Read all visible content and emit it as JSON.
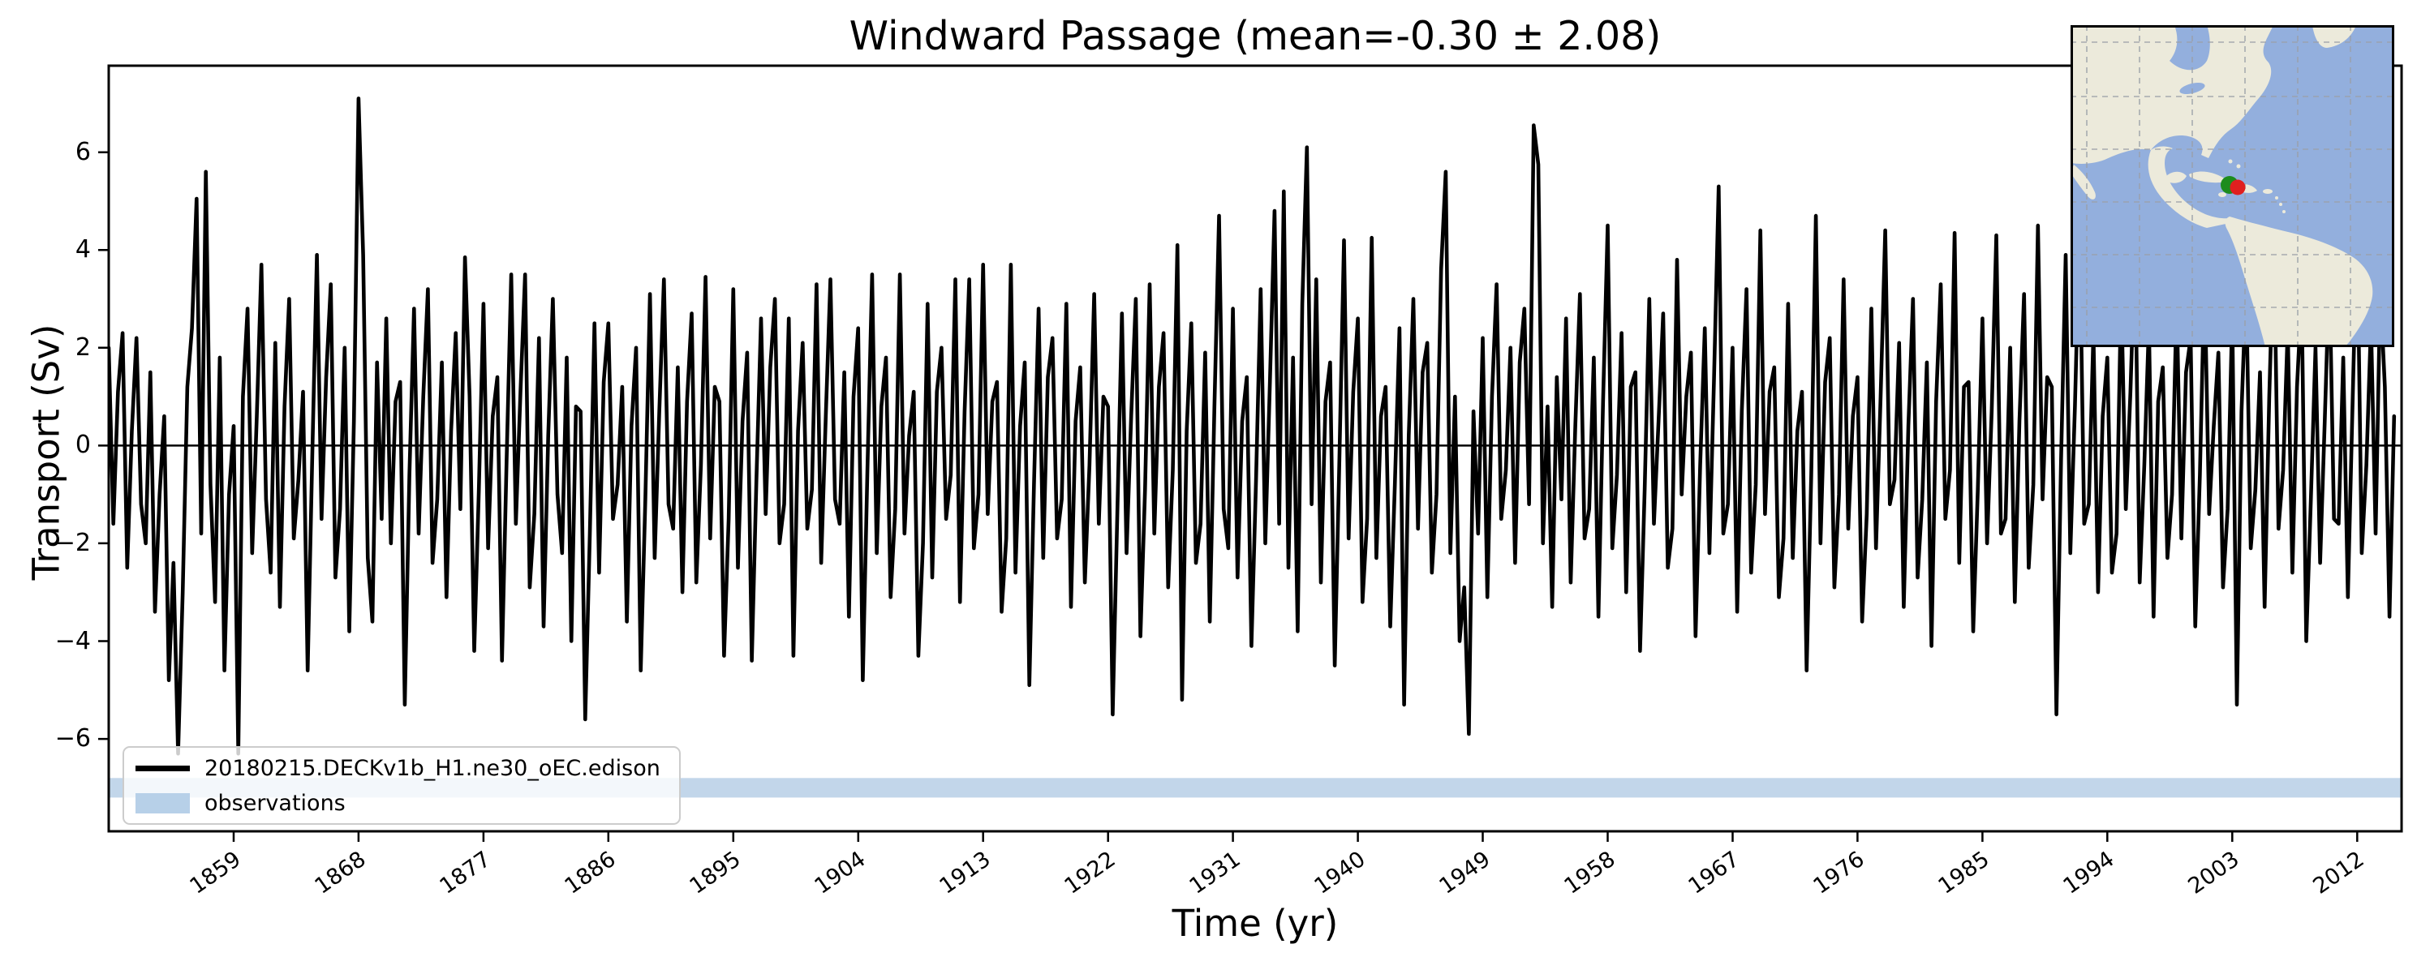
{
  "title": "Windward Passage (mean=-0.30 ± 2.08)",
  "stats": {
    "mean": "-0.30",
    "std": "2.08"
  },
  "axes": {
    "xlabel": "Time (yr)",
    "ylabel": "Transport (Sv)",
    "xlim": [
      1850.0,
      2015.2
    ],
    "ylim": [
      -7.89,
      7.77
    ],
    "x_ticks": [
      1859,
      1868,
      1877,
      1886,
      1895,
      1904,
      1913,
      1922,
      1931,
      1940,
      1949,
      1958,
      1967,
      1976,
      1985,
      1994,
      2003,
      2012
    ],
    "y_ticks": [
      {
        "v": 6,
        "label": "6"
      },
      {
        "v": 4,
        "label": "4"
      },
      {
        "v": 2,
        "label": "2"
      },
      {
        "v": 0,
        "label": "0"
      },
      {
        "v": -2,
        "label": "−2"
      },
      {
        "v": -4,
        "label": "−4"
      },
      {
        "v": -6,
        "label": "−6"
      }
    ],
    "grid": "off"
  },
  "legend": {
    "position": "lower left",
    "entries": [
      {
        "label": "20180215.DECKv1b_H1.ne30_oEC.edison",
        "type": "line",
        "color": "#000000"
      },
      {
        "label": "observations",
        "type": "patch",
        "color": "#b7d0e8"
      }
    ]
  },
  "chart_data": {
    "type": "line",
    "title": "Windward Passage (mean=-0.30 ± 2.08)",
    "xlabel": "Time (yr)",
    "ylabel": "Transport (Sv)",
    "xlim": [
      1850.0,
      2015.2
    ],
    "ylim": [
      -7.89,
      7.77
    ],
    "zero_line": 0,
    "observations_band": {
      "ymin": -7.2,
      "ymax": -6.8,
      "color": "#c2d6ea"
    },
    "series": [
      {
        "name": "20180215.DECKv1b_H1.ne30_oEC.edison",
        "color": "#000000",
        "line_width": 4.6,
        "x_start": 1850.0,
        "x_step": 0.33333,
        "values": [
          2.0,
          -1.6,
          1.1,
          2.3,
          -2.5,
          0.3,
          2.2,
          -1.2,
          -2.0,
          1.5,
          -3.4,
          -1.0,
          0.6,
          -4.8,
          -2.4,
          -6.3,
          -3.0,
          1.2,
          2.4,
          5.05,
          -1.8,
          5.6,
          -0.8,
          -3.2,
          1.8,
          -4.6,
          -1.0,
          0.4,
          -6.3,
          1.0,
          2.8,
          -2.2,
          0.6,
          3.7,
          -1.1,
          -2.6,
          2.1,
          -3.3,
          0.8,
          3.0,
          -1.9,
          -0.7,
          1.1,
          -4.6,
          -0.2,
          3.9,
          -1.5,
          1.4,
          3.3,
          -2.7,
          -1.3,
          2.0,
          -3.8,
          0.5,
          7.1,
          3.9,
          -2.3,
          -3.6,
          1.7,
          -1.5,
          2.6,
          -2.0,
          0.9,
          1.3,
          -5.3,
          -0.6,
          2.8,
          -1.8,
          1.0,
          3.2,
          -2.4,
          -1.1,
          1.7,
          -3.1,
          0.3,
          2.3,
          -1.3,
          3.85,
          1.0,
          -4.2,
          -0.9,
          2.9,
          -2.1,
          0.6,
          1.4,
          -4.4,
          -0.3,
          3.5,
          -1.6,
          1.1,
          3.5,
          -2.9,
          -1.4,
          2.2,
          -3.7,
          0.2,
          3.0,
          -1.0,
          -2.2,
          1.8,
          -4.0,
          0.8,
          0.7,
          -5.6,
          -1.8,
          2.5,
          -2.6,
          1.3,
          2.5,
          -1.5,
          -0.8,
          1.2,
          -3.6,
          0.4,
          2.0,
          -4.6,
          -1.1,
          3.1,
          -2.3,
          0.7,
          3.4,
          -1.2,
          -1.7,
          1.6,
          -3.0,
          0.9,
          2.7,
          -2.8,
          -0.4,
          3.45,
          -1.9,
          1.2,
          0.9,
          -4.3,
          -1.5,
          3.2,
          -2.5,
          0.5,
          1.9,
          -4.4,
          -0.7,
          2.6,
          -1.4,
          1.6,
          3.0,
          -2.0,
          -1.2,
          2.6,
          -4.3,
          0.3,
          2.1,
          -1.7,
          -0.9,
          3.3,
          -2.4,
          0.6,
          3.4,
          -1.1,
          -1.6,
          1.5,
          -3.5,
          1.0,
          2.4,
          -4.8,
          -0.5,
          3.5,
          -2.2,
          0.8,
          1.8,
          -3.1,
          -1.3,
          3.5,
          -1.8,
          0.2,
          1.1,
          -4.3,
          -2.0,
          2.9,
          -2.7,
          1.1,
          2.0,
          -1.5,
          -0.6,
          3.4,
          -3.2,
          0.7,
          3.4,
          -2.1,
          -1.0,
          3.7,
          -1.4,
          0.9,
          1.3,
          -3.4,
          -1.9,
          3.7,
          -2.6,
          0.4,
          1.7,
          -4.9,
          -0.8,
          2.8,
          -2.3,
          1.4,
          2.2,
          -1.9,
          -1.1,
          2.9,
          -3.3,
          0.5,
          1.6,
          -2.8,
          -0.4,
          3.1,
          -1.6,
          1.0,
          0.8,
          -5.5,
          -1.4,
          2.7,
          -2.2,
          0.6,
          3.0,
          -3.9,
          -0.9,
          3.3,
          -1.8,
          1.2,
          2.3,
          -2.9,
          -0.5,
          4.1,
          -5.2,
          0.3,
          2.5,
          -2.4,
          -1.6,
          1.9,
          -3.6,
          0.8,
          4.7,
          -1.3,
          -2.1,
          2.8,
          -2.7,
          0.5,
          1.4,
          -4.1,
          -0.7,
          3.2,
          -2.0,
          1.3,
          4.8,
          -1.6,
          5.2,
          -2.5,
          1.8,
          -3.8,
          2.9,
          6.1,
          -1.2,
          3.4,
          -2.8,
          0.9,
          1.7,
          -4.5,
          -0.3,
          4.2,
          -1.9,
          1.1,
          2.6,
          -3.2,
          -1.5,
          4.25,
          -2.3,
          0.6,
          1.2,
          -3.7,
          -0.8,
          2.4,
          -5.3,
          0.2,
          3.0,
          -1.7,
          1.5,
          2.1,
          -2.6,
          -1.0,
          3.6,
          5.6,
          -2.2,
          1.0,
          -4.0,
          -2.9,
          -5.9,
          0.7,
          -1.8,
          2.2,
          -3.1,
          1.0,
          3.3,
          -1.5,
          -0.5,
          2.0,
          -2.4,
          1.7,
          2.8,
          -1.2,
          6.55,
          5.75,
          -2.0,
          0.8,
          -3.3,
          1.4,
          -1.1,
          2.6,
          -2.8,
          0.4,
          3.1,
          -1.9,
          -1.3,
          1.8,
          -3.5,
          0.9,
          4.5,
          -2.1,
          -0.6,
          2.3,
          -3.0,
          1.2,
          1.5,
          -4.2,
          -0.9,
          3.0,
          -1.6,
          0.5,
          2.7,
          -2.5,
          -1.7,
          3.8,
          -1.0,
          1.0,
          1.9,
          -3.9,
          -0.4,
          2.4,
          -2.2,
          1.4,
          5.3,
          -1.8,
          -1.2,
          2.0,
          -3.4,
          0.7,
          3.2,
          -2.6,
          -0.8,
          4.4,
          -1.4,
          1.1,
          1.6,
          -3.1,
          -1.9,
          2.9,
          -2.3,
          0.3,
          1.1,
          -4.6,
          -0.6,
          4.7,
          -2.0,
          1.3,
          2.2,
          -2.9,
          -1.0,
          3.4,
          -1.7,
          0.6,
          1.4,
          -3.6,
          -1.4,
          2.8,
          -2.1,
          1.0,
          4.4,
          -1.2,
          -0.7,
          2.1,
          -3.3,
          0.4,
          3.0,
          -2.7,
          -1.1,
          1.7,
          -4.1,
          0.9,
          3.3,
          -1.5,
          -0.5,
          4.35,
          -2.4,
          1.2,
          1.3,
          -3.8,
          -0.9,
          2.6,
          -2.0,
          0.7,
          4.3,
          -1.8,
          -1.5,
          2.0,
          -3.2,
          0.5,
          3.1,
          -2.5,
          -0.8,
          4.5,
          -1.1,
          1.4,
          1.2,
          -5.5,
          -0.3,
          3.9,
          -2.2,
          0.8,
          4.5,
          -1.6,
          -1.2,
          2.3,
          -3.0,
          0.6,
          1.8,
          -2.6,
          -1.8,
          3.2,
          -1.3,
          1.1,
          4.1,
          -2.8,
          -0.4,
          2.5,
          -3.5,
          0.9,
          1.6,
          -2.3,
          -1.0,
          3.0,
          -1.9,
          1.5,
          2.2,
          -3.7,
          -0.6,
          3.5,
          -1.4,
          0.4,
          1.9,
          -2.9,
          -1.3,
          2.7,
          -5.3,
          0.7,
          3.3,
          -2.1,
          -0.9,
          1.5,
          -3.3,
          1.0,
          4.3,
          -1.7,
          -0.5,
          2.4,
          -2.6,
          1.2,
          3.1,
          -4.0,
          -1.1,
          2.0,
          -2.4,
          0.5,
          3.6,
          -1.5,
          -1.6,
          1.8,
          -3.1,
          0.8,
          4.6,
          -2.2,
          -0.4,
          2.5,
          -1.8,
          3.2,
          1.2,
          -3.5,
          0.6
        ]
      }
    ]
  },
  "inset_map": {
    "ocean_color": "#93afdd",
    "land_color": "#eceadb",
    "grid_color": "#9aa0a8",
    "border_color": "#000000",
    "markers": [
      {
        "name": "model-location",
        "color": "#1d8c1d"
      },
      {
        "name": "obs-location",
        "color": "#e01f1f"
      }
    ]
  }
}
